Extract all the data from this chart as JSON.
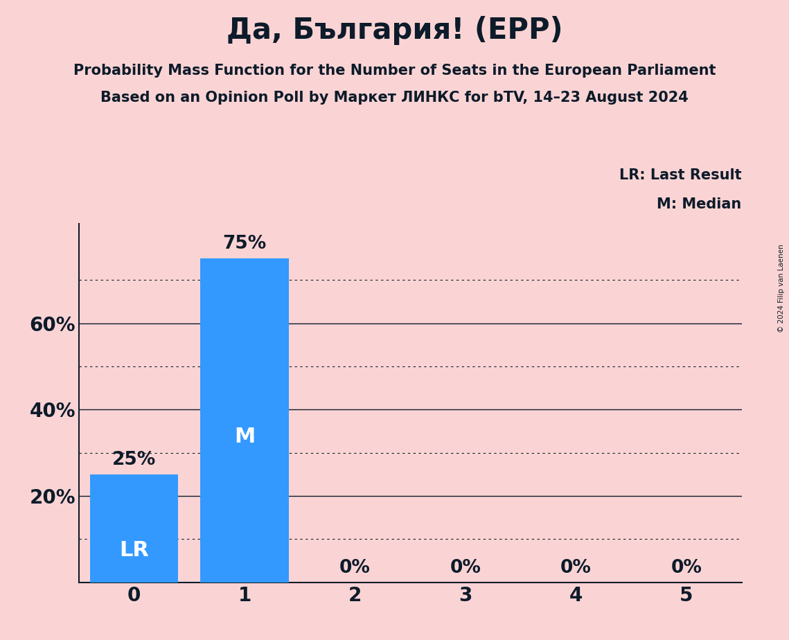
{
  "title": "Да, България! (EPP)",
  "subtitle1": "Probability Mass Function for the Number of Seats in the European Parliament",
  "subtitle2": "Based on an Opinion Poll by Маркет ЛИНКС for bTV, 14–23 August 2024",
  "categories": [
    0,
    1,
    2,
    3,
    4,
    5
  ],
  "values": [
    0.25,
    0.75,
    0.0,
    0.0,
    0.0,
    0.0
  ],
  "bar_color": "#3399FF",
  "background_color": "#FAD4D4",
  "text_color": "#0d1b2a",
  "bar_label_color_above": "#0d1b2a",
  "bar_label_color_inside": "#ffffff",
  "last_result_seat": 0,
  "median_seat": 1,
  "legend_lr": "LR: Last Result",
  "legend_m": "M: Median",
  "copyright": "© 2024 Filip van Laenen",
  "ylim": [
    0,
    0.83
  ],
  "solid_gridlines": [
    0.0,
    0.2,
    0.4,
    0.6
  ],
  "dotted_gridlines": [
    0.1,
    0.3,
    0.5,
    0.7
  ],
  "title_fontsize": 30,
  "subtitle_fontsize": 15,
  "axis_fontsize": 20,
  "bar_label_fontsize": 19,
  "legend_fontsize": 15,
  "inside_label_fontsize": 22
}
